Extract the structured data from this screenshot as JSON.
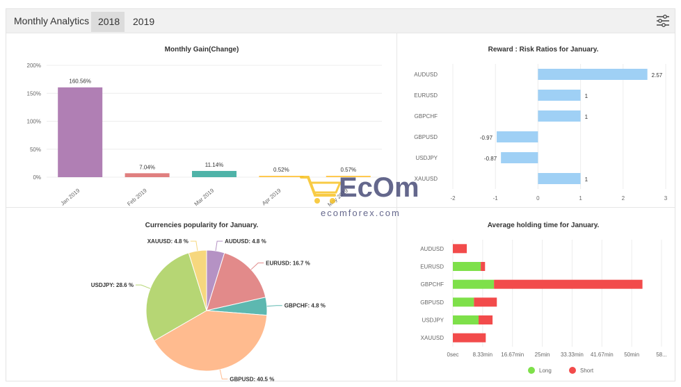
{
  "header": {
    "title": "Monthly Analytics",
    "tabs": [
      {
        "label": "2018",
        "active": true
      },
      {
        "label": "2019",
        "active": false
      }
    ],
    "settings_icon": "sliders-icon"
  },
  "watermark": {
    "text": "ecomforex.com",
    "logo_text": "EcOm",
    "colors": {
      "primary": "#4a4d78",
      "accent": "#f7c325"
    }
  },
  "chart_data": [
    {
      "type": "bar",
      "title": "Monthly Gain(Change)",
      "categories": [
        "Jan 2019",
        "Feb 2019",
        "Mar 2019",
        "Apr 2019",
        "May 2019"
      ],
      "values": [
        160.56,
        7.04,
        11.14,
        0.52,
        0.57
      ],
      "data_labels": [
        "160.56%",
        "7.04%",
        "11.14%",
        "0.52%",
        "0.57%"
      ],
      "colors": [
        "#b07fb4",
        "#e07f7f",
        "#4fb3a8",
        "#ffc94f",
        "#ffc94f"
      ],
      "ylim": [
        0,
        200
      ],
      "yticks": [
        "0%",
        "50%",
        "100%",
        "150%",
        "200%"
      ],
      "grid": true
    },
    {
      "type": "bar",
      "orientation": "horizontal",
      "title": "Reward : Risk Ratios for January.",
      "categories": [
        "AUDUSD",
        "EURUSD",
        "GBPCHF",
        "GBPUSD",
        "USDJPY",
        "XAUUSD"
      ],
      "values": [
        2.57,
        1,
        1,
        -0.97,
        -0.87,
        1
      ],
      "data_labels": [
        "2.57",
        "1",
        "1",
        "-0.97",
        "-0.87",
        "1"
      ],
      "color": "#9fd0f5",
      "xlim": [
        -2,
        3
      ],
      "xticks": [
        "-2",
        "-1",
        "0",
        "1",
        "2",
        "3"
      ],
      "grid": true
    },
    {
      "type": "pie",
      "title": "Currencies popularity for January.",
      "slices": [
        {
          "label": "AUDUSD",
          "value": 4.8,
          "text": "AUDUSD: 4.8 %",
          "color": "#b592c4"
        },
        {
          "label": "EURUSD",
          "value": 16.7,
          "text": "EURUSD: 16.7 %",
          "color": "#e28a8a"
        },
        {
          "label": "GBPCHF",
          "value": 4.8,
          "text": "GBPCHF: 4.8 %",
          "color": "#5db8b0"
        },
        {
          "label": "GBPUSD",
          "value": 40.5,
          "text": "GBPUSD: 40.5 %",
          "color": "#ffbb8f"
        },
        {
          "label": "USDJPY",
          "value": 28.6,
          "text": "USDJPY: 28.6 %",
          "color": "#b6d674"
        },
        {
          "label": "XAUUSD",
          "value": 4.8,
          "text": "XAUUSD: 4.8 %",
          "color": "#f6d77e"
        }
      ]
    },
    {
      "type": "bar",
      "orientation": "horizontal",
      "stacked": true,
      "title": "Average holding time for January.",
      "categories": [
        "AUDUSD",
        "EURUSD",
        "GBPCHF",
        "GBPUSD",
        "USDJPY",
        "XAUUSD"
      ],
      "series": [
        {
          "name": "Long",
          "color": "#7ee04a",
          "values": [
            0,
            7.8,
            11.5,
            5.9,
            7.2,
            0
          ]
        },
        {
          "name": "Short",
          "color": "#f24b4b",
          "values": [
            3.9,
            1.2,
            41.5,
            6.4,
            3.9,
            9.2
          ]
        }
      ],
      "xlim": [
        0,
        58.33
      ],
      "xticks": [
        "0sec",
        "8.33min",
        "16.67min",
        "25min",
        "33.33min",
        "41.67min",
        "50min",
        "58..."
      ],
      "legend": "bottom-center",
      "grid": true
    }
  ]
}
